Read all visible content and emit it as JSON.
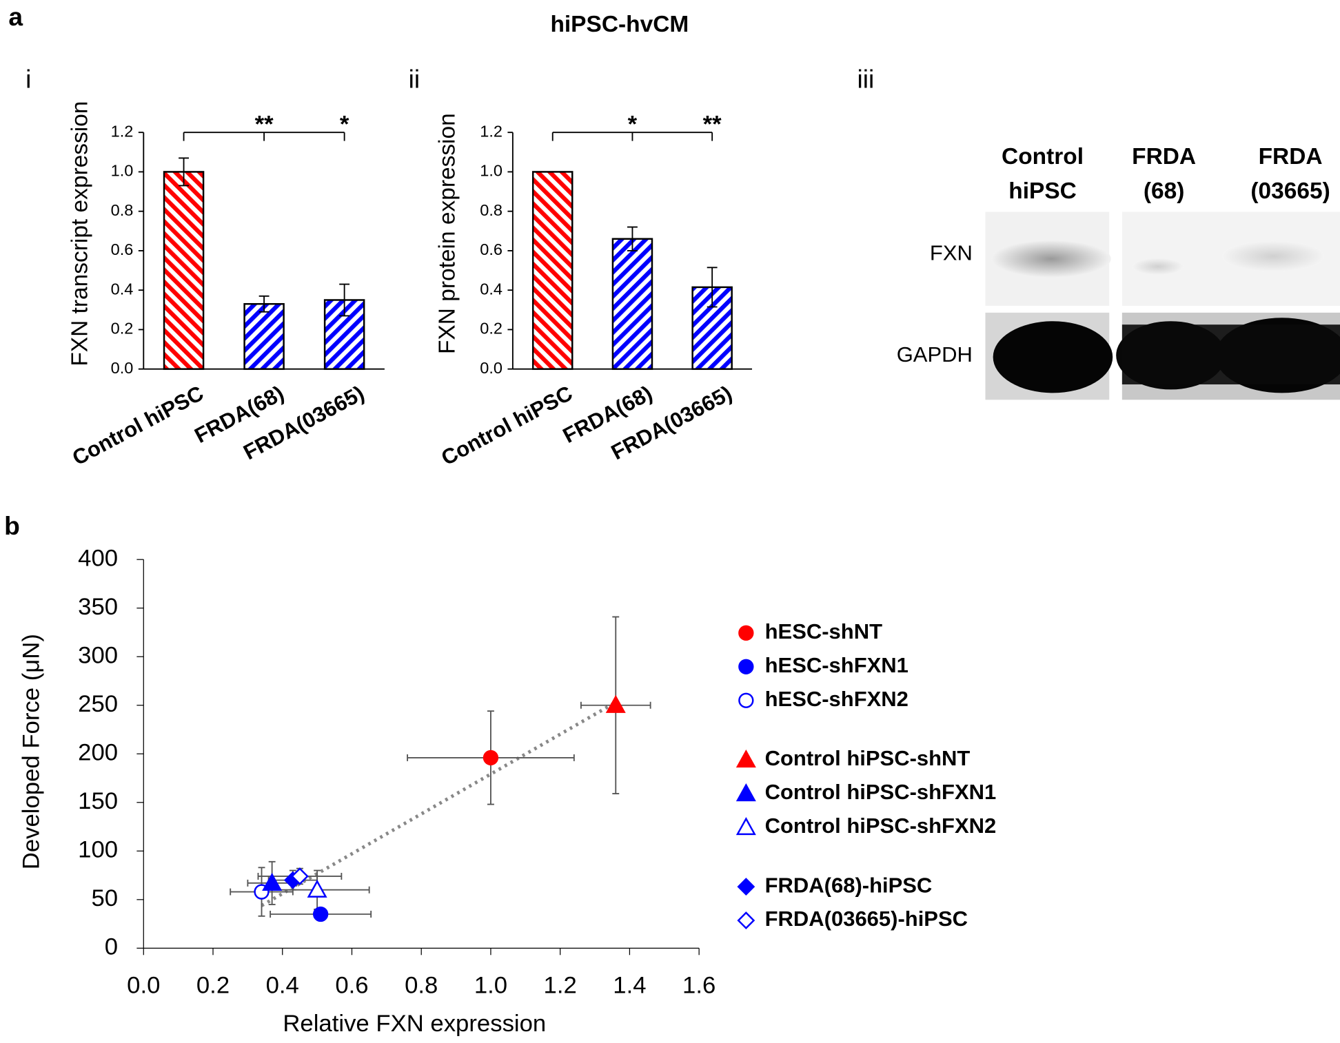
{
  "title": "hiPSC-hvCM",
  "chart_data": [
    {
      "type": "bar",
      "panel": "a",
      "subpanel": "i",
      "ylabel": "FXN transcript expression",
      "categories": [
        "Control hiPSC",
        "FRDA(68)",
        "FRDA(03665)"
      ],
      "values": [
        1.0,
        0.33,
        0.35
      ],
      "errors": [
        0.07,
        0.04,
        0.08
      ],
      "colors": [
        "#ff0000",
        "#0000ff",
        "#0000ff"
      ],
      "hatch": true,
      "significance": [
        null,
        "**",
        "*"
      ],
      "ylim": [
        0,
        1.2
      ],
      "yticks": [
        {
          "value": 0,
          "label": "0.0"
        },
        0.2,
        0.4,
        0.6,
        0.8,
        {
          "value": 1,
          "label": "1.0"
        },
        1.2
      ]
    },
    {
      "type": "bar",
      "subpanel": "ii",
      "ylabel": "FXN protein expression",
      "categories": [
        "Control hiPSC",
        "FRDA(68)",
        "FRDA(03665)"
      ],
      "values": [
        1.0,
        0.66,
        0.415
      ],
      "errors": [
        0,
        0.06,
        0.1
      ],
      "colors": [
        "#ff0000",
        "#0000ff",
        "#0000ff"
      ],
      "hatch": true,
      "significance": [
        null,
        "*",
        "**"
      ],
      "ylim": [
        0,
        1.2
      ],
      "yticks": [
        {
          "value": 0,
          "label": "0.0"
        },
        0.2,
        0.4,
        0.6,
        0.8,
        {
          "value": 1,
          "label": "1.0"
        },
        1.2
      ]
    },
    {
      "type": "blot",
      "subpanel": "iii",
      "lanes": [
        [
          "Control",
          "hiPSC"
        ],
        [
          "FRDA",
          "(68)"
        ],
        [
          "FRDA",
          "(03665)"
        ]
      ],
      "rows": [
        "FXN",
        "GAPDH"
      ]
    },
    {
      "type": "scatter",
      "panel": "b",
      "xlabel": "Relative FXN expression",
      "ylabel": "Developed Force (μN)",
      "trendline": true,
      "xlim": [
        0,
        1.6
      ],
      "xticks": [
        {
          "value": 0,
          "label": "0.0"
        },
        0.2,
        0.4,
        0.6,
        0.8,
        {
          "value": 1,
          "label": "1.0"
        },
        1.2,
        1.4,
        1.6
      ],
      "ylim": [
        0,
        400
      ],
      "yticks": [
        0,
        50,
        100,
        150,
        200,
        250,
        300,
        350,
        400
      ],
      "series": [
        {
          "name": "hESC-shNT",
          "color": "#ff0000",
          "marker": "circle",
          "filled": true,
          "x": [
            1.0
          ],
          "values": [
            196
          ],
          "xerr": [
            0.24
          ],
          "yerr": [
            48
          ]
        },
        {
          "name": "hESC-shFXN1",
          "color": "#0000ff",
          "marker": "circle",
          "filled": true,
          "x": [
            0.51
          ],
          "values": [
            35
          ],
          "xerr": [
            0.145
          ],
          "yerr": [
            4
          ]
        },
        {
          "name": "hESC-shFXN2",
          "color": "#0000ff",
          "marker": "circle",
          "filled": false,
          "x": [
            0.34
          ],
          "values": [
            58
          ],
          "xerr": [
            0.09
          ],
          "yerr": [
            25
          ]
        },
        {
          "name": "Control hiPSC-shNT",
          "color": "#ff0000",
          "marker": "triangle",
          "filled": true,
          "x": [
            1.36
          ],
          "values": [
            250
          ],
          "xerr": [
            0.1
          ],
          "yerr": [
            91
          ]
        },
        {
          "name": "Control hiPSC-shFXN1",
          "color": "#0000ff",
          "marker": "triangle",
          "filled": true,
          "x": [
            0.37
          ],
          "values": [
            67
          ],
          "xerr": [
            0.07
          ],
          "yerr": [
            22
          ]
        },
        {
          "name": "Control hiPSC-shFXN2",
          "color": "#0000ff",
          "marker": "triangle",
          "filled": false,
          "x": [
            0.5
          ],
          "values": [
            60
          ],
          "xerr": [
            0.15
          ],
          "yerr": [
            20
          ]
        },
        {
          "name": "FRDA(68)-hiPSC",
          "color": "#0000ff",
          "marker": "diamond",
          "filled": true,
          "x": [
            0.43
          ],
          "values": [
            70
          ],
          "xerr": [
            0.07
          ],
          "yerr": [
            10
          ]
        },
        {
          "name": "FRDA(03665)-hiPSC",
          "color": "#0000ff",
          "marker": "diamond",
          "filled": false,
          "x": [
            0.45
          ],
          "values": [
            74
          ],
          "xerr": [
            0.12
          ],
          "yerr": [
            8
          ]
        }
      ]
    }
  ]
}
